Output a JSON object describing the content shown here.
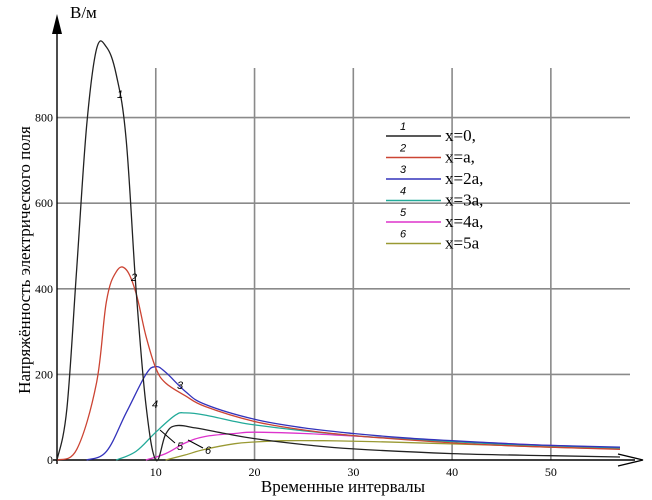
{
  "chart_data": {
    "type": "line",
    "y_unit": "В/м",
    "ylabel": "Напряжённость электрического поля",
    "xlabel": "Временные интервалы",
    "xlim": [
      0,
      57
    ],
    "ylim": [
      0,
      1000
    ],
    "xticks": [
      10,
      20,
      30,
      40,
      50
    ],
    "yticks": [
      0,
      200,
      400,
      600,
      800
    ],
    "grid": true,
    "legend_position": "right",
    "series": [
      {
        "name": "x=0,",
        "number": "1",
        "color": "#222222",
        "points": [
          [
            0,
            0
          ],
          [
            1,
            120
          ],
          [
            2,
            450
          ],
          [
            3,
            780
          ],
          [
            4,
            960
          ],
          [
            5,
            965
          ],
          [
            6,
            900
          ],
          [
            7,
            750
          ],
          [
            8,
            400
          ],
          [
            9,
            130
          ],
          [
            10,
            0
          ],
          [
            11,
            60
          ],
          [
            12,
            80
          ],
          [
            14,
            75
          ],
          [
            17,
            62
          ],
          [
            20,
            50
          ],
          [
            25,
            36
          ],
          [
            30,
            26
          ],
          [
            40,
            15
          ],
          [
            50,
            10
          ],
          [
            57,
            7
          ]
        ]
      },
      {
        "name": "x=a,",
        "number": "2",
        "color": "#cc4433",
        "points": [
          [
            0,
            0
          ],
          [
            2,
            25
          ],
          [
            4,
            180
          ],
          [
            5,
            370
          ],
          [
            6,
            440
          ],
          [
            7,
            445
          ],
          [
            8,
            390
          ],
          [
            9,
            290
          ],
          [
            10,
            215
          ],
          [
            11,
            180
          ],
          [
            13,
            150
          ],
          [
            15,
            125
          ],
          [
            20,
            90
          ],
          [
            25,
            70
          ],
          [
            30,
            57
          ],
          [
            35,
            48
          ],
          [
            40,
            40
          ],
          [
            45,
            34
          ],
          [
            50,
            30
          ],
          [
            57,
            25
          ]
        ]
      },
      {
        "name": "x=2a,",
        "number": "3",
        "color": "#3333bb",
        "points": [
          [
            3,
            0
          ],
          [
            5,
            20
          ],
          [
            7,
            110
          ],
          [
            9,
            200
          ],
          [
            10,
            218
          ],
          [
            11,
            205
          ],
          [
            13,
            160
          ],
          [
            15,
            130
          ],
          [
            20,
            95
          ],
          [
            25,
            75
          ],
          [
            30,
            62
          ],
          [
            35,
            52
          ],
          [
            40,
            45
          ],
          [
            45,
            39
          ],
          [
            50,
            34
          ],
          [
            57,
            30
          ]
        ]
      },
      {
        "name": "x=3a,",
        "number": "4",
        "color": "#22aa99",
        "points": [
          [
            6,
            0
          ],
          [
            8,
            20
          ],
          [
            10,
            65
          ],
          [
            12,
            105
          ],
          [
            13,
            110
          ],
          [
            15,
            105
          ],
          [
            18,
            90
          ],
          [
            20,
            82
          ],
          [
            25,
            68
          ],
          [
            30,
            57
          ],
          [
            35,
            49
          ],
          [
            40,
            43
          ],
          [
            45,
            37
          ],
          [
            50,
            33
          ],
          [
            57,
            28
          ]
        ]
      },
      {
        "name": "x=4a,",
        "number": "5",
        "color": "#dd33cc",
        "points": [
          [
            9,
            0
          ],
          [
            11,
            15
          ],
          [
            13,
            40
          ],
          [
            15,
            55
          ],
          [
            18,
            62
          ],
          [
            20,
            65
          ],
          [
            25,
            62
          ],
          [
            30,
            56
          ],
          [
            35,
            50
          ],
          [
            40,
            44
          ],
          [
            45,
            39
          ],
          [
            50,
            34
          ],
          [
            57,
            29
          ]
        ]
      },
      {
        "name": "x=5a",
        "number": "6",
        "color": "#999933",
        "points": [
          [
            11,
            0
          ],
          [
            13,
            12
          ],
          [
            15,
            25
          ],
          [
            18,
            38
          ],
          [
            20,
            42
          ],
          [
            23,
            45
          ],
          [
            27,
            45
          ],
          [
            32,
            43
          ],
          [
            38,
            39
          ],
          [
            45,
            34
          ],
          [
            50,
            30
          ],
          [
            57,
            26
          ]
        ]
      }
    ]
  }
}
